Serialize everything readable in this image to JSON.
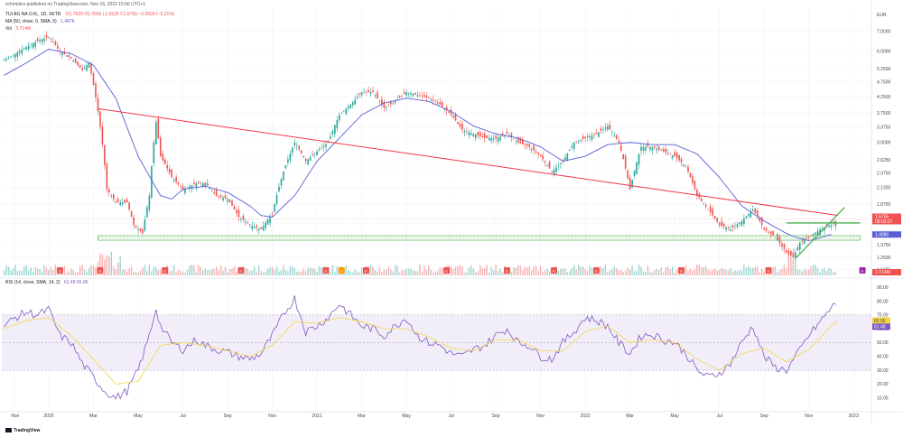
{
  "header": {
    "publisher": "schmidico published on TradingView.com, Nov 16, 2022 15:56 UTC+1",
    "symbol": "TUI AG NA O.N., 1D, XETR",
    "ohlc": "O1.7520 H1.7565 L1.6525 C1.6755 −0.0920 (−5.21%)",
    "ma": "MA (50, close, 0, SMA, 5)",
    "ma_value": "1.4878",
    "vol": "Vol",
    "vol_value": "3.714M",
    "rsi": "RSI (14, close, SMA, 14, 2)",
    "rsi_values": "61.48   65.96",
    "currency": "EUR",
    "watermark": "TradingView"
  },
  "colors": {
    "up": "#26a69a",
    "down": "#ef5350",
    "ma": "#5b5fd6",
    "trendline": "#f23645",
    "support": "#4caf50",
    "rsi": "#7e57c2",
    "rsi_ma": "#f5d547",
    "rsi_band": "#ede7f6"
  },
  "chart_data": [
    {
      "type": "candlestick",
      "scale": "log",
      "y_ticks": [
        "7.0000",
        "6.0000",
        "5.2500",
        "4.7500",
        "4.2500",
        "3.7500",
        "3.3750",
        "3.0000",
        "2.6250",
        "2.3750",
        "2.1250",
        "1.8750",
        "1.6250",
        "1.3750",
        "1.2500",
        "1.1375"
      ],
      "y_ticks_num": [
        7.0,
        6.0,
        5.25,
        4.75,
        4.25,
        3.75,
        3.375,
        3.0,
        2.625,
        2.375,
        2.125,
        1.875,
        1.625,
        1.375,
        1.25,
        1.1375
      ],
      "ylim": [
        1.09,
        8.4
      ],
      "x_ticks": [
        "Nov",
        "2020",
        "Mar",
        "May",
        "Jul",
        "Sep",
        "Nov",
        "2021",
        "Mar",
        "May",
        "Jul",
        "Sep",
        "Nov",
        "2022",
        "Mar",
        "May",
        "Jul",
        "Sep",
        "Nov",
        "2023"
      ],
      "x_ticks_pos": [
        0.5,
        2,
        4,
        6,
        8,
        10,
        12,
        14,
        16,
        18,
        20,
        22,
        24,
        26,
        28,
        30,
        32,
        34,
        36,
        38
      ],
      "month_range": [
        -0.1,
        38.8
      ],
      "price_path": [
        [
          0,
          5.6
        ],
        [
          0.5,
          5.9
        ],
        [
          1,
          6.2
        ],
        [
          1.5,
          6.5
        ],
        [
          2,
          6.7
        ],
        [
          2.5,
          6.0
        ],
        [
          3,
          5.7
        ],
        [
          3.5,
          5.2
        ],
        [
          3.8,
          5.5
        ],
        [
          4.2,
          3.8
        ],
        [
          4.6,
          2.1
        ],
        [
          5,
          1.9
        ],
        [
          5.5,
          1.9
        ],
        [
          5.8,
          1.6
        ],
        [
          6.2,
          1.5
        ],
        [
          6.5,
          2.0
        ],
        [
          6.8,
          3.5
        ],
        [
          7,
          2.7
        ],
        [
          7.5,
          2.3
        ],
        [
          8,
          2.1
        ],
        [
          8.6,
          2.2
        ],
        [
          9,
          2.2
        ],
        [
          9.5,
          2.0
        ],
        [
          10,
          1.95
        ],
        [
          10.5,
          1.7
        ],
        [
          11,
          1.6
        ],
        [
          11.5,
          1.55
        ],
        [
          12,
          1.75
        ],
        [
          12.5,
          2.4
        ],
        [
          13,
          3.0
        ],
        [
          13.5,
          2.6
        ],
        [
          14,
          2.8
        ],
        [
          14.5,
          3.0
        ],
        [
          15,
          3.7
        ],
        [
          15.5,
          4.0
        ],
        [
          16,
          4.4
        ],
        [
          16.5,
          4.4
        ],
        [
          17,
          3.9
        ],
        [
          17.5,
          4.1
        ],
        [
          18,
          4.4
        ],
        [
          18.5,
          4.3
        ],
        [
          19,
          4.2
        ],
        [
          19.5,
          4.0
        ],
        [
          20,
          3.7
        ],
        [
          20.5,
          3.3
        ],
        [
          21,
          3.2
        ],
        [
          21.5,
          3.1
        ],
        [
          22,
          3.1
        ],
        [
          22.5,
          3.2
        ],
        [
          23,
          3.0
        ],
        [
          23.5,
          2.9
        ],
        [
          24,
          2.7
        ],
        [
          24.5,
          2.4
        ],
        [
          25,
          2.6
        ],
        [
          25.5,
          3.0
        ],
        [
          26,
          3.1
        ],
        [
          26.5,
          3.2
        ],
        [
          27,
          3.4
        ],
        [
          27.5,
          3.0
        ],
        [
          28,
          2.1
        ],
        [
          28.5,
          2.9
        ],
        [
          29,
          2.9
        ],
        [
          29.5,
          2.8
        ],
        [
          30,
          2.7
        ],
        [
          30.5,
          2.5
        ],
        [
          31,
          2.0
        ],
        [
          31.5,
          1.8
        ],
        [
          32,
          1.6
        ],
        [
          32.5,
          1.55
        ],
        [
          33,
          1.65
        ],
        [
          33.5,
          1.8
        ],
        [
          34,
          1.55
        ],
        [
          34.5,
          1.45
        ],
        [
          35,
          1.3
        ],
        [
          35.3,
          1.25
        ],
        [
          35.6,
          1.4
        ],
        [
          36,
          1.45
        ],
        [
          36.5,
          1.55
        ],
        [
          37,
          1.6
        ],
        [
          37.3,
          1.68
        ]
      ],
      "ma_path": [
        [
          0,
          5.0
        ],
        [
          1,
          5.5
        ],
        [
          2,
          6.1
        ],
        [
          3,
          5.9
        ],
        [
          4,
          5.4
        ],
        [
          5,
          4.2
        ],
        [
          6,
          2.7
        ],
        [
          7,
          2.0
        ],
        [
          7.5,
          1.95
        ],
        [
          8,
          2.1
        ],
        [
          9,
          2.15
        ],
        [
          10,
          2.05
        ],
        [
          11,
          1.85
        ],
        [
          11.5,
          1.72
        ],
        [
          12,
          1.7
        ],
        [
          13,
          2.0
        ],
        [
          14,
          2.6
        ],
        [
          15,
          3.1
        ],
        [
          16,
          3.7
        ],
        [
          17,
          4.05
        ],
        [
          18,
          4.2
        ],
        [
          19,
          4.1
        ],
        [
          20,
          3.8
        ],
        [
          21,
          3.4
        ],
        [
          22,
          3.2
        ],
        [
          23,
          3.1
        ],
        [
          24,
          2.9
        ],
        [
          25,
          2.6
        ],
        [
          26,
          2.7
        ],
        [
          27,
          2.95
        ],
        [
          28,
          3.0
        ],
        [
          29,
          2.95
        ],
        [
          30,
          2.95
        ],
        [
          31,
          2.75
        ],
        [
          32,
          2.3
        ],
        [
          33,
          1.85
        ],
        [
          34,
          1.65
        ],
        [
          35,
          1.5
        ],
        [
          35.5,
          1.45
        ],
        [
          36,
          1.42
        ],
        [
          36.5,
          1.45
        ],
        [
          37,
          1.49
        ]
      ],
      "trendline": [
        [
          4.2,
          3.88
        ],
        [
          37.3,
          1.72
        ]
      ],
      "breakout_line": [
        [
          35,
          1.625
        ],
        [
          38.3,
          1.625
        ]
      ],
      "support_zone": [
        1.425,
        1.475
      ],
      "uptrend": [
        [
          35.4,
          1.24
        ],
        [
          37.6,
          1.83
        ]
      ],
      "last_price": "1.6755",
      "countdown": "08:03:27",
      "ma_label": "1.4880",
      "vol_label": "3.714M",
      "events": [
        {
          "m": 2.5,
          "k": "E"
        },
        {
          "m": 4.3,
          "k": "E"
        },
        {
          "m": 7.2,
          "k": "E"
        },
        {
          "m": 10.6,
          "k": "E"
        },
        {
          "m": 14.4,
          "k": "E"
        },
        {
          "m": 15.1,
          "k": "D"
        },
        {
          "m": 16.2,
          "k": "E"
        },
        {
          "m": 19.8,
          "k": "E"
        },
        {
          "m": 22.5,
          "k": "E"
        },
        {
          "m": 24.6,
          "k": "E"
        },
        {
          "m": 26.5,
          "k": "E"
        },
        {
          "m": 30.3,
          "k": "E"
        },
        {
          "m": 34.2,
          "k": "E"
        },
        {
          "m": 38.4,
          "k": "E"
        }
      ]
    },
    {
      "type": "line",
      "title": "RSI (14, close, SMA, 14, 2)",
      "y_ticks": [
        "90.00",
        "80.00",
        "70.00",
        "60.00",
        "50.00",
        "40.00",
        "30.00",
        "20.00",
        "10.00"
      ],
      "y_ticks_num": [
        90,
        80,
        70,
        60,
        50,
        40,
        30,
        20,
        10
      ],
      "ylim": [
        2,
        94
      ],
      "band": [
        30,
        70
      ],
      "last_rsi": "61.48",
      "last_rsi_ma": "65.96",
      "rsi_path": [
        [
          0,
          62
        ],
        [
          0.5,
          68
        ],
        [
          1,
          72
        ],
        [
          1.5,
          70
        ],
        [
          2,
          74
        ],
        [
          2.5,
          55
        ],
        [
          3,
          50
        ],
        [
          3.5,
          35
        ],
        [
          4,
          25
        ],
        [
          4.5,
          15
        ],
        [
          5,
          10
        ],
        [
          5.5,
          15
        ],
        [
          6,
          30
        ],
        [
          6.5,
          55
        ],
        [
          6.8,
          75
        ],
        [
          7,
          62
        ],
        [
          7.5,
          50
        ],
        [
          8,
          45
        ],
        [
          8.6,
          52
        ],
        [
          9,
          48
        ],
        [
          9.5,
          45
        ],
        [
          10,
          43
        ],
        [
          10.5,
          40
        ],
        [
          11,
          38
        ],
        [
          11.5,
          42
        ],
        [
          12,
          55
        ],
        [
          12.5,
          70
        ],
        [
          13,
          82
        ],
        [
          13.5,
          58
        ],
        [
          14,
          62
        ],
        [
          14.5,
          68
        ],
        [
          15,
          78
        ],
        [
          15.5,
          70
        ],
        [
          16,
          62
        ],
        [
          16.5,
          60
        ],
        [
          17,
          55
        ],
        [
          17.5,
          62
        ],
        [
          18,
          68
        ],
        [
          18.5,
          55
        ],
        [
          19,
          50
        ],
        [
          19.5,
          48
        ],
        [
          20,
          42
        ],
        [
          20.5,
          40
        ],
        [
          21,
          45
        ],
        [
          21.5,
          48
        ],
        [
          22,
          55
        ],
        [
          22.5,
          60
        ],
        [
          23,
          50
        ],
        [
          23.5,
          48
        ],
        [
          24,
          40
        ],
        [
          24.5,
          38
        ],
        [
          25,
          50
        ],
        [
          25.5,
          58
        ],
        [
          26,
          68
        ],
        [
          26.5,
          66
        ],
        [
          27,
          62
        ],
        [
          27.5,
          50
        ],
        [
          28,
          42
        ],
        [
          28.5,
          55
        ],
        [
          29,
          56
        ],
        [
          29.5,
          52
        ],
        [
          30,
          50
        ],
        [
          30.5,
          42
        ],
        [
          31,
          30
        ],
        [
          31.5,
          25
        ],
        [
          32,
          28
        ],
        [
          32.5,
          35
        ],
        [
          33,
          50
        ],
        [
          33.5,
          62
        ],
        [
          34,
          40
        ],
        [
          34.5,
          32
        ],
        [
          35,
          30
        ],
        [
          35.5,
          42
        ],
        [
          36,
          55
        ],
        [
          36.5,
          65
        ],
        [
          37,
          75
        ],
        [
          37.2,
          78
        ],
        [
          37.3,
          61.5
        ]
      ],
      "rsi_ma_path": [
        [
          0,
          60
        ],
        [
          1,
          66
        ],
        [
          2,
          68
        ],
        [
          3,
          55
        ],
        [
          4,
          38
        ],
        [
          5,
          20
        ],
        [
          6,
          22
        ],
        [
          7,
          48
        ],
        [
          8,
          50
        ],
        [
          9,
          48
        ],
        [
          10,
          44
        ],
        [
          11,
          40
        ],
        [
          12,
          48
        ],
        [
          13,
          65
        ],
        [
          14,
          64
        ],
        [
          15,
          68
        ],
        [
          16,
          65
        ],
        [
          17,
          60
        ],
        [
          18,
          60
        ],
        [
          19,
          54
        ],
        [
          20,
          46
        ],
        [
          21,
          44
        ],
        [
          22,
          52
        ],
        [
          23,
          52
        ],
        [
          24,
          44
        ],
        [
          25,
          44
        ],
        [
          26,
          58
        ],
        [
          27,
          62
        ],
        [
          28,
          50
        ],
        [
          29,
          52
        ],
        [
          30,
          50
        ],
        [
          31,
          38
        ],
        [
          32,
          30
        ],
        [
          33,
          42
        ],
        [
          34,
          46
        ],
        [
          35,
          36
        ],
        [
          36,
          45
        ],
        [
          37,
          62
        ],
        [
          37.3,
          66
        ]
      ]
    }
  ]
}
